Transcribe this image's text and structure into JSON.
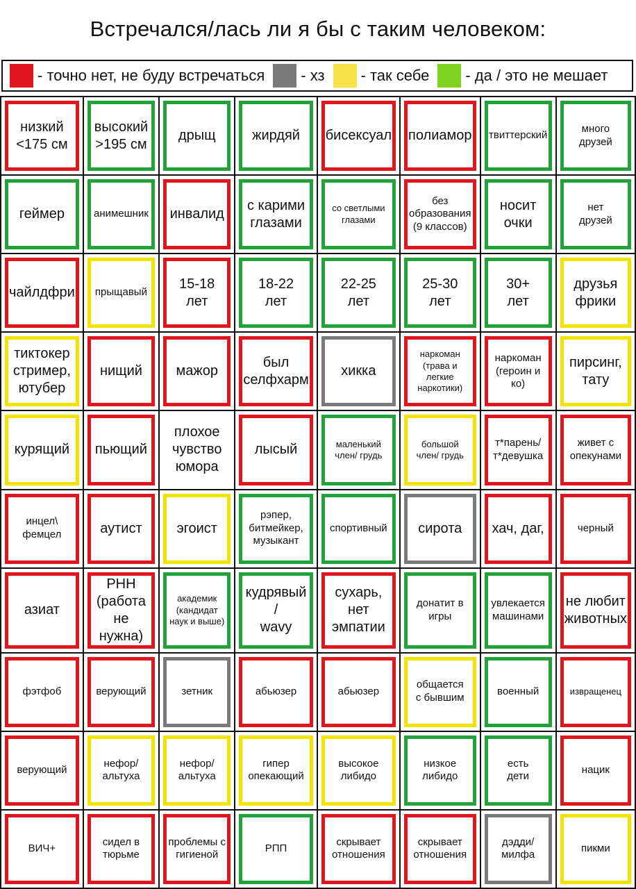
{
  "title": "Встречался/лась ли я бы с таким человеком:",
  "colors": {
    "red": "#e0161e",
    "gray": "#7a7a7a",
    "yellow": "#f3e300",
    "green": "#7ed321"
  },
  "legend": [
    {
      "color": "red",
      "label": "- точно нет, не буду встречаться"
    },
    {
      "color": "gray",
      "label": "- хз"
    },
    {
      "color": "yellow",
      "label": "- так себе"
    },
    {
      "color": "green",
      "label": "- да / это не мешает"
    }
  ],
  "grid": [
    [
      {
        "text": "низкий\n<175 см",
        "rating": "red"
      },
      {
        "text": "высокий\n>195 см",
        "rating": "green"
      },
      {
        "text": "дрыщ",
        "rating": "green"
      },
      {
        "text": "жирдяй",
        "rating": "green"
      },
      {
        "text": "бисексуал",
        "rating": "red"
      },
      {
        "text": "полиамор",
        "rating": "red"
      },
      {
        "text": "твиттерский",
        "rating": "green",
        "size": "s"
      },
      {
        "text": "много\nдрузей",
        "rating": "green",
        "size": "s"
      }
    ],
    [
      {
        "text": "геймер",
        "rating": "green"
      },
      {
        "text": "анимешник",
        "rating": "green",
        "size": "s"
      },
      {
        "text": "инвалид",
        "rating": "red"
      },
      {
        "text": "с карими\nглазами",
        "rating": "green"
      },
      {
        "text": "со светлыми\nглазами",
        "rating": "green",
        "size": "xs"
      },
      {
        "text": "без\nобразования\n(9 классов)",
        "rating": "red",
        "size": "s"
      },
      {
        "text": "носит\nочки",
        "rating": "green"
      },
      {
        "text": "нет\nдрузей",
        "rating": "green",
        "size": "s"
      }
    ],
    [
      {
        "text": "чайлдфри",
        "rating": "red"
      },
      {
        "text": "прыщавый",
        "rating": "yellow",
        "size": "s"
      },
      {
        "text": "15-18\nлет",
        "rating": "red"
      },
      {
        "text": "18-22\nлет",
        "rating": "green"
      },
      {
        "text": "22-25\nлет",
        "rating": "green"
      },
      {
        "text": "25-30\nлет",
        "rating": "green"
      },
      {
        "text": "30+\nлет",
        "rating": "green"
      },
      {
        "text": "друзья\nфрики",
        "rating": "yellow"
      }
    ],
    [
      {
        "text": "тиктокер\nстример,\nютубер",
        "rating": "yellow"
      },
      {
        "text": "нищий",
        "rating": "red"
      },
      {
        "text": "мажор",
        "rating": "red"
      },
      {
        "text": "был\nселфхарм",
        "rating": "red"
      },
      {
        "text": "хикка",
        "rating": "gray"
      },
      {
        "text": "наркоман\n(трава и легкие\nнаркотики)",
        "rating": "red",
        "size": "xs"
      },
      {
        "text": "наркоман\n(героин и ко)",
        "rating": "red",
        "size": "s"
      },
      {
        "text": "пирсинг,\nтату",
        "rating": "yellow"
      }
    ],
    [
      {
        "text": "курящий",
        "rating": "yellow"
      },
      {
        "text": "пьющий",
        "rating": "red"
      },
      {
        "text": "плохое\nчувство\nюмора",
        "rating": "none"
      },
      {
        "text": "лысый",
        "rating": "red"
      },
      {
        "text": "маленький\nчлен/ грудь",
        "rating": "green",
        "size": "xs"
      },
      {
        "text": "большой\nчлен/ грудь",
        "rating": "yellow",
        "size": "xs"
      },
      {
        "text": "т*парень/\nт*девушка",
        "rating": "red",
        "size": "s"
      },
      {
        "text": "живет с\nопекунами",
        "rating": "red",
        "size": "s"
      }
    ],
    [
      {
        "text": "инцел\\\nфемцел",
        "rating": "red",
        "size": "s"
      },
      {
        "text": "аутист",
        "rating": "red"
      },
      {
        "text": "эгоист",
        "rating": "yellow"
      },
      {
        "text": "рэпер,\nбитмейкер,\nмузыкант",
        "rating": "green",
        "size": "s"
      },
      {
        "text": "спортивный",
        "rating": "green",
        "size": "s"
      },
      {
        "text": "сирота",
        "rating": "gray"
      },
      {
        "text": "хач, даг,",
        "rating": "red"
      },
      {
        "text": "черный",
        "rating": "red",
        "size": "s"
      }
    ],
    [
      {
        "text": "азиат",
        "rating": "red"
      },
      {
        "text": "РНН\n(работа\nне нужна)",
        "rating": "red"
      },
      {
        "text": "академик\n(кандидат\nнаук и выше)",
        "rating": "green",
        "size": "xs"
      },
      {
        "text": "кудрявый\n/\nwavy",
        "rating": "green"
      },
      {
        "text": "сухарь,\nнет\nэмпатии",
        "rating": "red"
      },
      {
        "text": "донатит в\nигры",
        "rating": "green",
        "size": "s"
      },
      {
        "text": "увлекается\nмашинами",
        "rating": "green",
        "size": "s"
      },
      {
        "text": "не любит\nживотных",
        "rating": "red"
      }
    ],
    [
      {
        "text": "фэтфоб",
        "rating": "red",
        "size": "s"
      },
      {
        "text": "верующий",
        "rating": "red",
        "size": "s"
      },
      {
        "text": "зетник",
        "rating": "gray",
        "size": "s"
      },
      {
        "text": "абьюзер",
        "rating": "red",
        "size": "s"
      },
      {
        "text": "абьюзер",
        "rating": "red",
        "size": "s"
      },
      {
        "text": "общается\nс бывшим",
        "rating": "yellow",
        "size": "s"
      },
      {
        "text": "военный",
        "rating": "green",
        "size": "s"
      },
      {
        "text": "извращенец",
        "rating": "red",
        "size": "xs"
      }
    ],
    [
      {
        "text": "верующий",
        "rating": "red",
        "size": "s"
      },
      {
        "text": "нефор/\nальтуха",
        "rating": "yellow",
        "size": "s"
      },
      {
        "text": "нефор/\nальтуха",
        "rating": "yellow",
        "size": "s"
      },
      {
        "text": "гипер\nопекающий",
        "rating": "yellow",
        "size": "s"
      },
      {
        "text": "высокое\nлибидо",
        "rating": "yellow",
        "size": "s"
      },
      {
        "text": "низкое\nлибидо",
        "rating": "green",
        "size": "s"
      },
      {
        "text": "есть\nдети",
        "rating": "green",
        "size": "s"
      },
      {
        "text": "нацик",
        "rating": "red",
        "size": "s"
      }
    ],
    [
      {
        "text": "ВИЧ+",
        "rating": "red",
        "size": "s"
      },
      {
        "text": "сидел в\nтюрьме",
        "rating": "red",
        "size": "s"
      },
      {
        "text": "проблемы с\nгигиеной",
        "rating": "red",
        "size": "s"
      },
      {
        "text": "РПП",
        "rating": "green",
        "size": "s"
      },
      {
        "text": "скрывает\nотношения",
        "rating": "red",
        "size": "s"
      },
      {
        "text": "скрывает\nотношения",
        "rating": "red",
        "size": "s"
      },
      {
        "text": "дэдди/\nмилфа",
        "rating": "gray",
        "size": "s"
      },
      {
        "text": "пикми",
        "rating": "yellow",
        "size": "s"
      }
    ]
  ]
}
